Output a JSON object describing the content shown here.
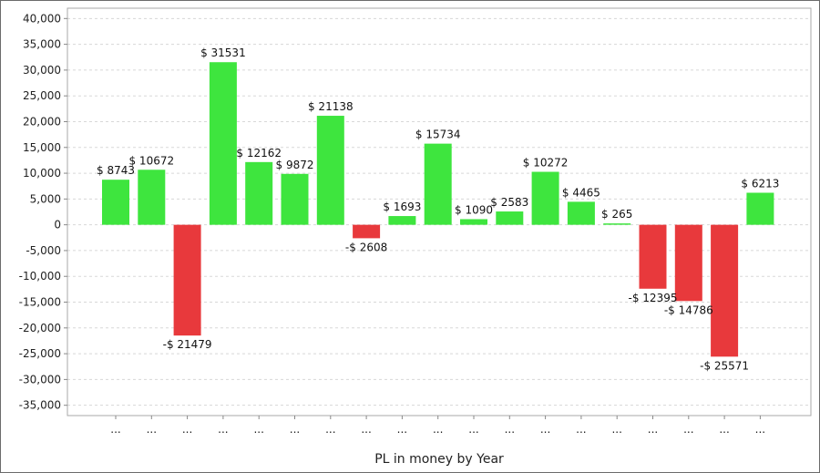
{
  "chart_data": {
    "type": "bar",
    "xlabel": "PL in money by Year",
    "ylabel": "",
    "ylim": [
      -37000,
      42000
    ],
    "yticks": [
      40000,
      35000,
      30000,
      25000,
      20000,
      15000,
      10000,
      5000,
      0,
      -5000,
      -10000,
      -15000,
      -20000,
      -25000,
      -30000,
      -35000
    ],
    "ytick_labels": [
      "40,000",
      "35,000",
      "30,000",
      "25,000",
      "20,000",
      "15,000",
      "10,000",
      "5,000",
      "0",
      "-5,000",
      "-10,000",
      "-15,000",
      "-20,000",
      "-25,000",
      "-30,000",
      "-35,000"
    ],
    "categories": [
      "...",
      "...",
      "...",
      "...",
      "...",
      "...",
      "...",
      "...",
      "...",
      "...",
      "...",
      "...",
      "...",
      "...",
      "...",
      "...",
      "...",
      "...",
      "..."
    ],
    "values": [
      8743,
      10672,
      -21479,
      31531,
      12162,
      9872,
      21138,
      -2608,
      1693,
      15734,
      1090,
      2583,
      10272,
      4465,
      265,
      -12395,
      -14786,
      -25571,
      6213
    ],
    "value_labels": [
      "$ 8743",
      "$ 10672",
      "-$ 21479",
      "$ 31531",
      "$ 12162",
      "$ 9872",
      "$ 21138",
      "-$ 2608",
      "$ 1693",
      "$ 15734",
      "$ 1090",
      "$ 2583",
      "$ 10272",
      "$ 4465",
      "$ 265",
      "-$ 12395",
      "-$ 14786",
      "-$ 25571",
      "$ 6213"
    ],
    "grid": true,
    "colors": {
      "positive": "#3ee53e",
      "negative": "#e8393c",
      "grid": "#d8d8d8",
      "axis": "#888888",
      "plot_border": "#aaaaaa"
    }
  }
}
